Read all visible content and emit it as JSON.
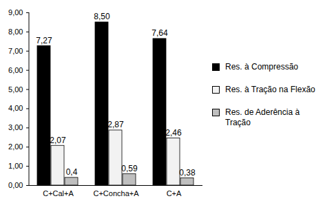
{
  "chart_data": {
    "type": "bar",
    "categories": [
      "C+Cal+A",
      "C+Concha+A",
      "C+A"
    ],
    "series": [
      {
        "name": "Res. à Compressão",
        "color": "#000000",
        "values": [
          7.27,
          8.5,
          7.64
        ],
        "value_labels": [
          "7,27",
          "8,50",
          "7,64"
        ]
      },
      {
        "name": "Res. à Tração na Flexão",
        "color": "#f2f2f2",
        "values": [
          2.07,
          2.87,
          2.46
        ],
        "value_labels": [
          "2,07",
          "2,87",
          "2,46"
        ]
      },
      {
        "name": "Res. de Aderência à Tração",
        "color": "#bfbfbf",
        "values": [
          0.4,
          0.59,
          0.38
        ],
        "value_labels": [
          "0,4",
          "0,59",
          "0,38"
        ]
      }
    ],
    "ylim": [
      0,
      9
    ],
    "yticks": [
      {
        "value": 0,
        "label": "0,00"
      },
      {
        "value": 1,
        "label": "1,00"
      },
      {
        "value": 2,
        "label": "2,00"
      },
      {
        "value": 3,
        "label": "3,00"
      },
      {
        "value": 4,
        "label": "4,00"
      },
      {
        "value": 5,
        "label": "5,00"
      },
      {
        "value": 6,
        "label": "6,00"
      },
      {
        "value": 7,
        "label": "7,00"
      },
      {
        "value": 8,
        "label": "8,00"
      },
      {
        "value": 9,
        "label": "9,00"
      }
    ],
    "data_labels": true,
    "legend": "right",
    "grid": false
  }
}
